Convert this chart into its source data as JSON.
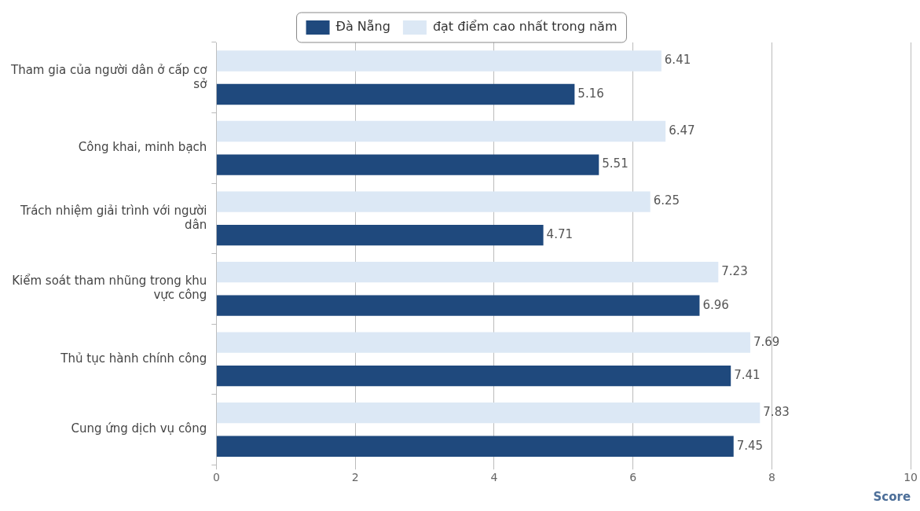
{
  "chart_data": {
    "type": "bar",
    "orientation": "horizontal",
    "xlabel": "Score",
    "categories": [
      "Tham gia của người dân ở cấp cơ sở",
      "Công khai, minh bạch",
      "Trách nhiệm giải trình với người dân",
      "Kiểm soát tham nhũng trong khu vực công",
      "Thủ tục hành chính công",
      "Cung ứng dịch vụ công"
    ],
    "series": [
      {
        "name": "Đà Nẵng",
        "color": "#1f497d",
        "values": [
          5.16,
          5.51,
          4.71,
          6.96,
          7.41,
          7.45
        ]
      },
      {
        "name": "đạt điểm cao nhất trong năm",
        "color": "#dce8f5",
        "values": [
          6.41,
          6.47,
          6.25,
          7.23,
          7.69,
          7.83
        ]
      }
    ],
    "xlim": [
      0,
      10
    ],
    "xticks": [
      0,
      2,
      4,
      6,
      8,
      10
    ],
    "grid": "x",
    "legend": "top",
    "data_labels": true
  }
}
